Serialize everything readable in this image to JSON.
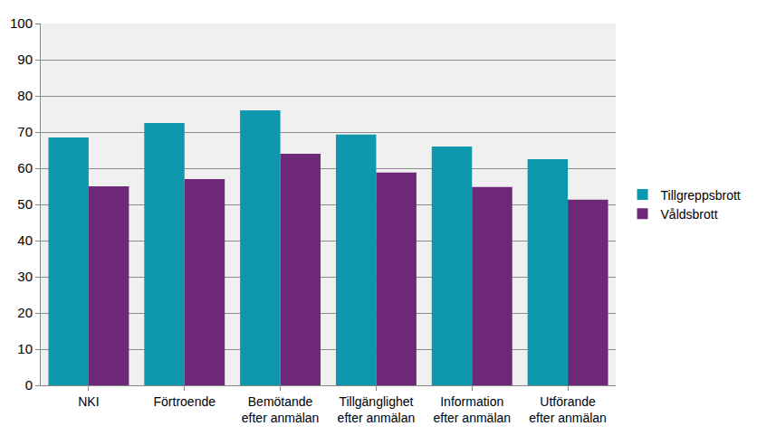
{
  "chart_data": {
    "type": "bar",
    "categories": [
      "NKI",
      "Förtroende",
      "Bemötande\nefter anmälan",
      "Tillgänglighet\nefter anmälan",
      "Information\nefter anmälan",
      "Utförande\nefter anmälan"
    ],
    "series": [
      {
        "name": "Tillgreppsbrott",
        "color": "#0E97AD",
        "values": [
          68.5,
          72.5,
          76,
          69.3,
          66,
          62.5
        ]
      },
      {
        "name": "Våldsbrott",
        "color": "#6E2878",
        "values": [
          55,
          57,
          64,
          58.8,
          54.8,
          51.3
        ]
      }
    ],
    "ylim": [
      0,
      100
    ],
    "yticks": [
      0,
      10,
      20,
      30,
      40,
      50,
      60,
      70,
      80,
      90,
      100
    ],
    "grid": true,
    "legend": "right"
  }
}
